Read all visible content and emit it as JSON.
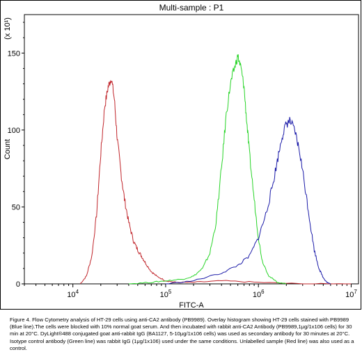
{
  "chart_data": {
    "type": "line",
    "title": "Multi-sample : P1",
    "xlabel": "FITC-A",
    "ylabel": "Count",
    "y_multiplier": "(x 10¹)",
    "x_scale": "log",
    "xlim": [
      3000,
      12000000
    ],
    "ylim": [
      0,
      175
    ],
    "x_ticks": [
      {
        "value": 10000,
        "base": "10",
        "exp": "4"
      },
      {
        "value": 100000,
        "base": "10",
        "exp": "5"
      },
      {
        "value": 1000000,
        "base": "10",
        "exp": "6"
      },
      {
        "value": 10000000,
        "base": "10",
        "exp": "7"
      }
    ],
    "y_ticks": [
      0,
      50,
      100,
      150
    ],
    "grid": false,
    "legend": "none",
    "series": [
      {
        "color": "#c0242a",
        "x": [
          12000,
          14000,
          16000,
          18000,
          20000,
          22000,
          24000,
          26000,
          28000,
          30000,
          33000,
          36000,
          40000,
          45000,
          50000,
          55000,
          60000,
          70000,
          80000,
          100000,
          130000,
          200000,
          400000,
          1000000,
          3000000,
          10000000
        ],
        "values": [
          0,
          5,
          18,
          45,
          85,
          115,
          128,
          134,
          120,
          95,
          72,
          55,
          40,
          28,
          22,
          18,
          14,
          8,
          5,
          2,
          1,
          1,
          2,
          1,
          0,
          0
        ]
      },
      {
        "color": "#27d427",
        "x": [
          40000,
          70000,
          100000,
          150000,
          200000,
          250000,
          300000,
          350000,
          400000,
          450000,
          500000,
          550000,
          600000,
          650000,
          700000,
          750000,
          800000,
          900000,
          1000000,
          1100000,
          1300000,
          1600000,
          2000000
        ],
        "values": [
          0,
          1,
          2,
          3,
          5,
          10,
          20,
          40,
          75,
          110,
          130,
          140,
          148,
          140,
          128,
          105,
          85,
          55,
          30,
          15,
          5,
          1,
          0
        ]
      },
      {
        "color": "#1a1aa8",
        "x": [
          100000,
          200000,
          400000,
          600000,
          800000,
          1000000,
          1200000,
          1400000,
          1600000,
          1800000,
          2000000,
          2200000,
          2500000,
          2800000,
          3200000,
          3600000,
          4000000,
          4500000,
          5000000,
          5500000,
          6000000
        ],
        "values": [
          0,
          2,
          7,
          12,
          18,
          30,
          45,
          62,
          80,
          96,
          104,
          106,
          98,
          85,
          62,
          40,
          22,
          10,
          4,
          1,
          0
        ]
      }
    ]
  },
  "caption": "Figure 4. Flow Cytometry analysis of HT-29 cells using anti-CA2 antibody (PB9989). Overlay histogram showing HT-29 cells stained with PB9989 (Blue line).The cells were blocked with 10% normal goat serum. And then incubated with rabbit anti-CA2 Antibody (PB9989,1μg/1x106 cells) for 30 min at 20°C. DyLight®488 conjugated goat anti-rabbit IgG (BA1127, 5-10μg/1x106 cells) was used as secondary antibody for 30 minutes at 20°C. Isotype control antibody (Green line) was rabbit IgG (1μg/1x106) used under the same conditions. Unlabelled sample (Red line) was also used as a control."
}
